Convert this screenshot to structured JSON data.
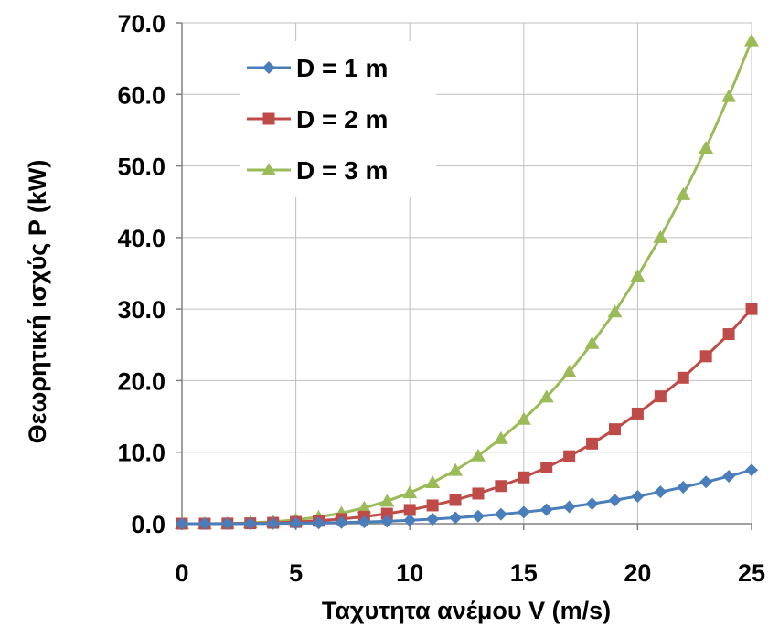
{
  "chart_data": {
    "type": "line",
    "xlabel": "Ταχυτητα ανέμου V (m/s)",
    "ylabel": "Θεωρητική ισχύς P (kW)",
    "xlim": [
      0,
      25
    ],
    "ylim": [
      0,
      70
    ],
    "x_ticks": [
      "0",
      "5",
      "10",
      "15",
      "20",
      "25"
    ],
    "y_ticks": [
      "0.0",
      "10.0",
      "20.0",
      "30.0",
      "40.0",
      "50.0",
      "60.0",
      "70.0"
    ],
    "grid": true,
    "legend_position": "top-left",
    "x": [
      0,
      1,
      2,
      3,
      4,
      5,
      6,
      7,
      8,
      9,
      10,
      11,
      12,
      13,
      14,
      15,
      16,
      17,
      18,
      19,
      20,
      21,
      22,
      23,
      24,
      25
    ],
    "series": [
      {
        "name": "D = 1 m",
        "color": "#4a7ebb",
        "marker": "diamond",
        "values": [
          0,
          0.0005,
          0.004,
          0.013,
          0.031,
          0.06,
          0.1,
          0.16,
          0.24,
          0.34,
          0.48,
          0.64,
          0.83,
          1.05,
          1.32,
          1.62,
          1.97,
          2.36,
          2.8,
          3.29,
          3.84,
          4.45,
          5.11,
          5.84,
          6.64,
          7.5
        ]
      },
      {
        "name": "D = 2 m",
        "color": "#be4b48",
        "marker": "square",
        "values": [
          0,
          0.002,
          0.015,
          0.052,
          0.12,
          0.24,
          0.41,
          0.66,
          0.98,
          1.4,
          1.92,
          2.56,
          3.32,
          4.22,
          5.27,
          6.48,
          7.86,
          9.43,
          11.2,
          13.2,
          15.4,
          17.8,
          20.4,
          23.4,
          26.5,
          30.0
        ]
      },
      {
        "name": "D = 3 m",
        "color": "#9bbb59",
        "marker": "triangle",
        "values": [
          0,
          0.004,
          0.035,
          0.12,
          0.28,
          0.54,
          0.93,
          1.48,
          2.21,
          3.15,
          4.32,
          5.75,
          7.46,
          9.49,
          11.9,
          14.6,
          17.7,
          21.2,
          25.2,
          29.6,
          34.6,
          40.0,
          46.0,
          52.5,
          59.7,
          67.5
        ]
      }
    ]
  }
}
